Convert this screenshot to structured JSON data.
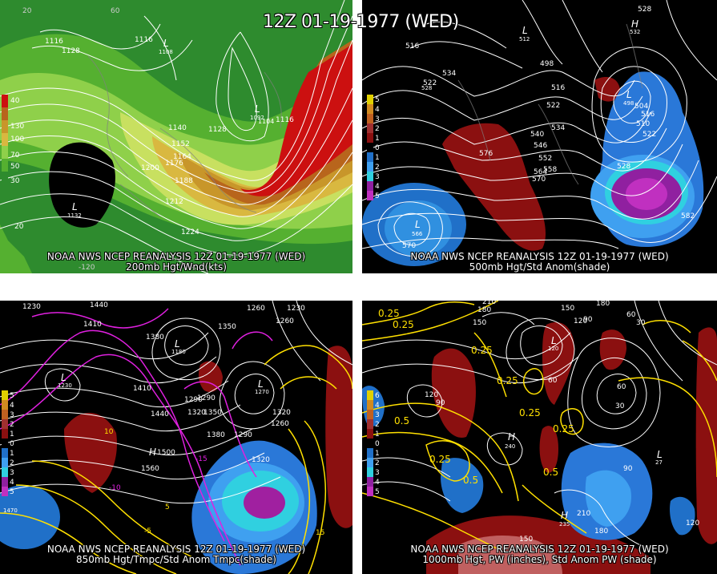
{
  "title": "12Z 01-19-1977 (WED)",
  "colors": {
    "background": "#000000",
    "contour": "#ffffff",
    "temp_anom": "#ffff00",
    "pw": "#ffff00",
    "wind_high": "#cc0000",
    "anom_neg": "#0066cc",
    "anom_pos": "#990000"
  },
  "panels": [
    {
      "id": "p200",
      "caption_line1": "NOAA NWS NCEP REANALYSIS 12Z 01-19-1977 (WED)",
      "caption_line2": "200mb Hgt/Wnd(kts)",
      "legend": [
        "40",
        "130",
        "100",
        "70",
        "50",
        "30",
        "20"
      ],
      "labels": [
        "1116",
        "1128",
        "1116",
        "1140",
        "1128",
        "1152",
        "1164",
        "1176",
        "1188",
        "1200",
        "1212",
        "1224",
        "1104",
        "1116",
        "L",
        "1092",
        "L",
        "1108",
        "L",
        "1132",
        "-120",
        "60",
        "20"
      ]
    },
    {
      "id": "p500",
      "caption_line1": "NOAA NWS NCEP REANALYSIS 12Z 01-19-1977 (WED)",
      "caption_line2": "500mb Hgt/Std Anom(shade)",
      "legend": [
        "5",
        "4",
        "3",
        "2",
        "1",
        "0",
        "1",
        "2",
        "3",
        "4",
        "5"
      ],
      "labels": [
        "528",
        "516",
        "534",
        "522",
        "522",
        "498",
        "516",
        "534",
        "540",
        "546",
        "552",
        "558",
        "564",
        "570",
        "576",
        "504",
        "516",
        "528",
        "582",
        "570",
        "L",
        "566",
        "L",
        "498",
        "H",
        "532",
        "L",
        "512",
        "528",
        "510",
        "522"
      ]
    },
    {
      "id": "p850",
      "caption_line1": "NOAA NWS NCEP REANALYSIS 12Z 01-19-1977 (WED)",
      "caption_line2": "850mb Hgt/Tmpc/Std Anom Tmpc(shade)",
      "legend": [
        "5",
        "4",
        "3",
        "2",
        "1",
        "0",
        "1",
        "2",
        "3",
        "4",
        "5"
      ],
      "labels": [
        "1230",
        "1440",
        "1410",
        "1380",
        "1350",
        "1260",
        "1230",
        "1260",
        "1290",
        "1320",
        "1350",
        "1320",
        "1290",
        "1260",
        "1380",
        "1410",
        "1440",
        "1290",
        "1560",
        "1500",
        "1470",
        "H",
        "1320",
        "L",
        "1180",
        "L",
        "1230",
        "L",
        "1270",
        "10",
        "-5",
        "5",
        "15",
        "-10",
        "-15"
      ]
    },
    {
      "id": "p1000",
      "caption_line1": "NOAA NWS NCEP REANALYSIS 12Z 01-19-1977 (WED)",
      "caption_line2": "1000mb Hgt, PW (inches), Std Anom PW (shade)",
      "legend": [
        "6",
        "4",
        "3",
        "2",
        "1",
        "0",
        "1",
        "2",
        "3",
        "4",
        "5"
      ],
      "labels": [
        "210",
        "180",
        "150",
        "120",
        "90",
        "60",
        "30",
        "180",
        "150",
        "120",
        "90",
        "60",
        "30",
        "0.25",
        "0.25",
        "0.25",
        "0.25",
        "0.5",
        "0.25",
        "0.5",
        "0.25",
        "0.25",
        "0.5",
        "H",
        "240",
        "H",
        "235",
        "L",
        "120",
        "L",
        "27",
        "210",
        "180",
        "120",
        "90",
        "60",
        "150"
      ]
    }
  ]
}
